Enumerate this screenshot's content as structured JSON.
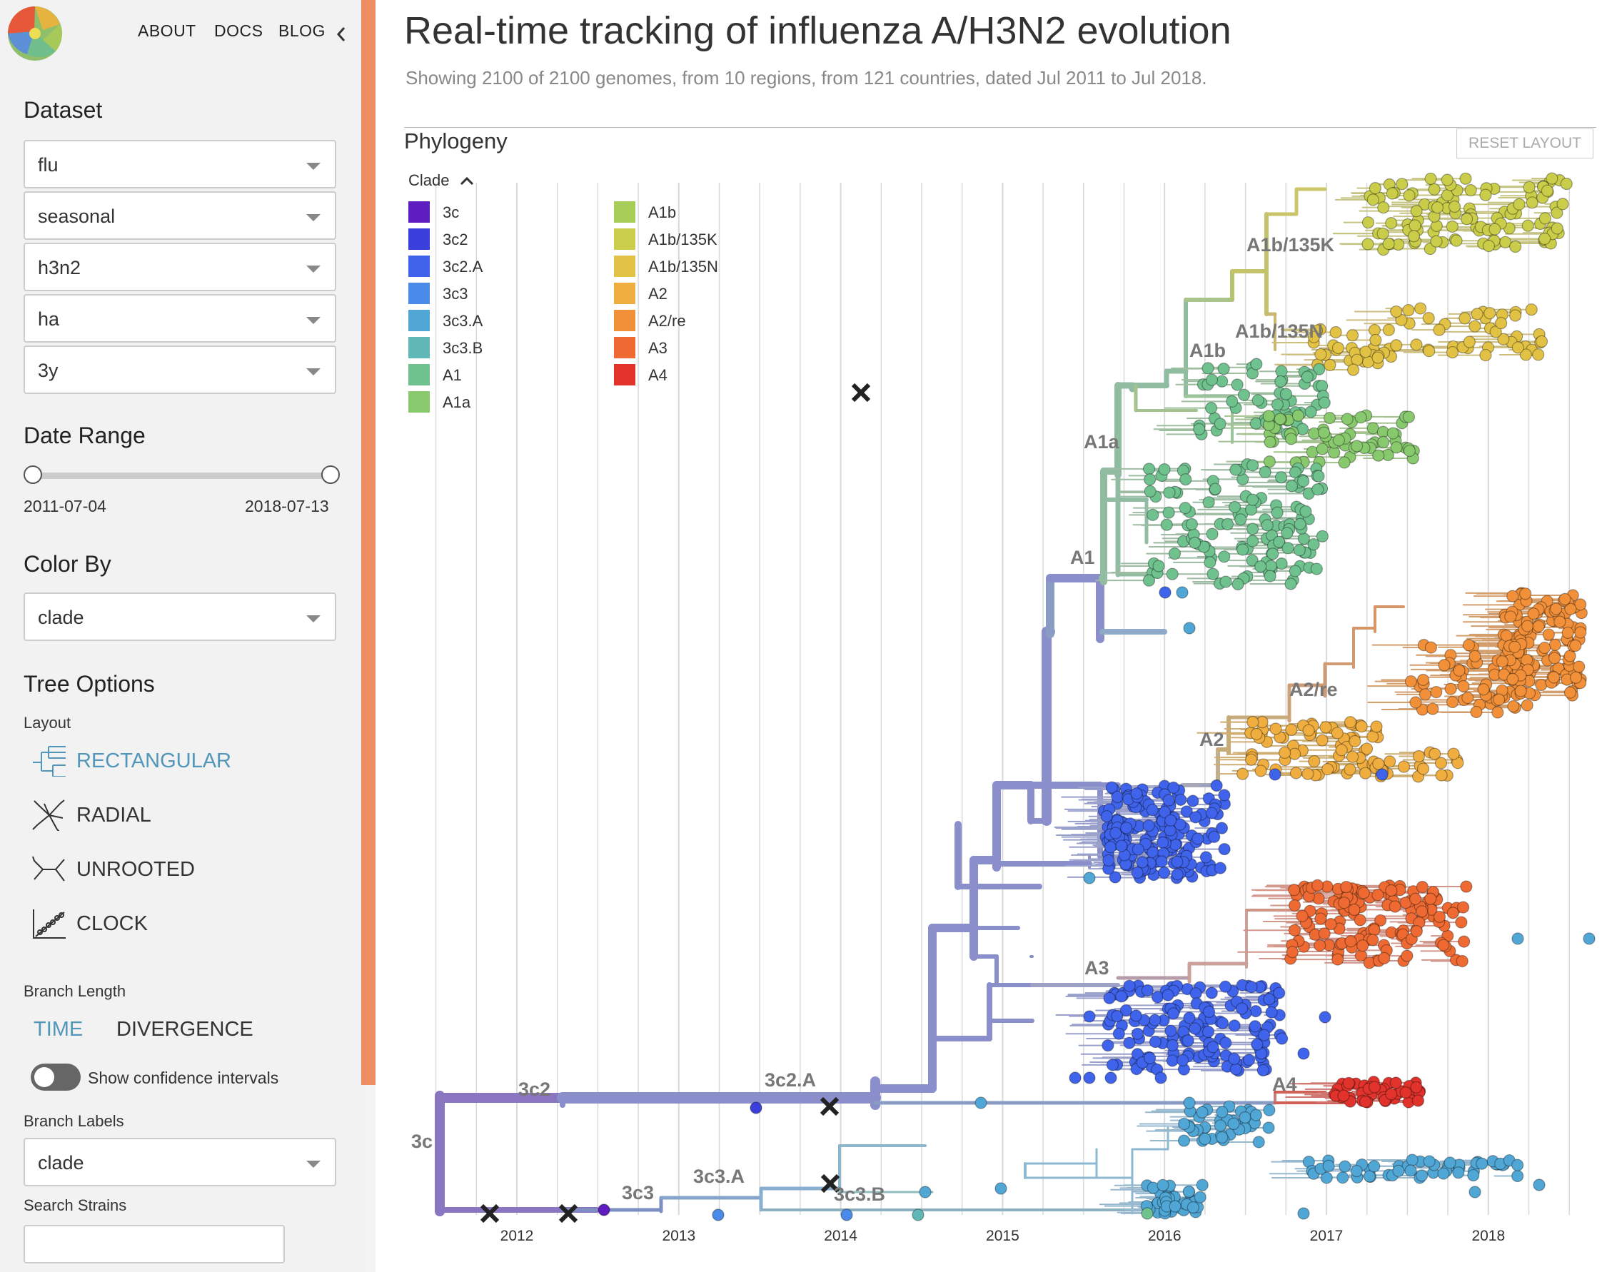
{
  "nav": {
    "about": "ABOUT",
    "docs": "DOCS",
    "blog": "BLOG"
  },
  "sidebar": {
    "dataset_title": "Dataset",
    "dataset_selects": [
      "flu",
      "seasonal",
      "h3n2",
      "ha",
      "3y"
    ],
    "date_range_title": "Date Range",
    "date_start": "2011-07-04",
    "date_end": "2018-07-13",
    "color_by_title": "Color By",
    "color_by_value": "clade",
    "tree_options_title": "Tree Options",
    "layout_label": "Layout",
    "layouts": [
      {
        "label": "RECTANGULAR",
        "icon": "rectangular-tree-icon",
        "selected": true
      },
      {
        "label": "RADIAL",
        "icon": "radial-tree-icon",
        "selected": false
      },
      {
        "label": "UNROOTED",
        "icon": "unrooted-tree-icon",
        "selected": false
      },
      {
        "label": "CLOCK",
        "icon": "clock-scatter-icon",
        "selected": false
      }
    ],
    "branch_length_label": "Branch Length",
    "branch_length_time": "TIME",
    "branch_length_divergence": "DIVERGENCE",
    "confidence_label": "Show confidence intervals",
    "confidence_on": false,
    "branch_labels_label": "Branch Labels",
    "branch_labels_value": "clade",
    "search_label": "Search Strains",
    "search_value": ""
  },
  "header": {
    "title": "Real-time tracking of influenza A/H3N2 evolution",
    "subtitle": "Showing 2100 of 2100 genomes, from 10 regions, from 121 countries, dated Jul 2011 to Jul 2018."
  },
  "phylogeny": {
    "title": "Phylogeny",
    "reset_label": "RESET LAYOUT",
    "legend_title": "Clade",
    "legend": [
      {
        "name": "3c",
        "color": "#5e1ebf"
      },
      {
        "name": "3c2",
        "color": "#3a3fdb"
      },
      {
        "name": "3c2.A",
        "color": "#3f63ea"
      },
      {
        "name": "3c3",
        "color": "#4a8ae8"
      },
      {
        "name": "3c3.A",
        "color": "#50a7d6"
      },
      {
        "name": "3c3.B",
        "color": "#60b8b6"
      },
      {
        "name": "A1",
        "color": "#6fc28e"
      },
      {
        "name": "A1a",
        "color": "#88c96e"
      },
      {
        "name": "A1b",
        "color": "#a8cd56"
      },
      {
        "name": "A1b/135K",
        "color": "#c9cd4a"
      },
      {
        "name": "A1b/135N",
        "color": "#e2c244"
      },
      {
        "name": "A2",
        "color": "#efae3f"
      },
      {
        "name": "A2/re",
        "color": "#f2903a"
      },
      {
        "name": "A3",
        "color": "#ee6a32"
      },
      {
        "name": "A4",
        "color": "#e1332c"
      }
    ],
    "years": [
      "2012",
      "2013",
      "2014",
      "2015",
      "2016",
      "2017",
      "2018"
    ],
    "clade_labels": [
      "3c",
      "3c2",
      "3c2.A",
      "3c3",
      "3c3.A",
      "3c3.B",
      "A1",
      "A1a",
      "A1b",
      "A1b/135K",
      "A1b/135N",
      "A2",
      "A2/re",
      "A3",
      "A4"
    ]
  }
}
